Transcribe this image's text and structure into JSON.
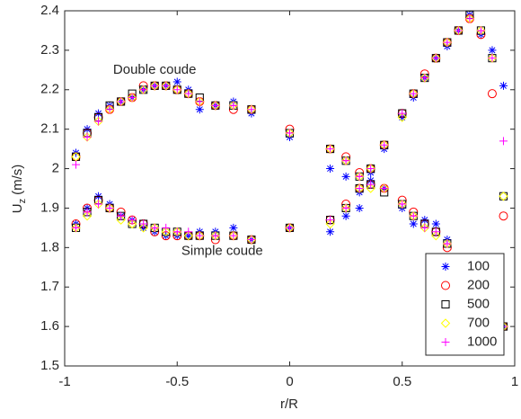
{
  "chart_data": {
    "type": "scatter",
    "xlabel": "r/R",
    "ylabel": "U",
    "ylabel_subscript": "z",
    "ylabel_units": "(m/s)",
    "annotations": [
      {
        "text": "Double coude",
        "x": -0.6,
        "y": 2.25
      },
      {
        "text": "Simple coude",
        "x": -0.3,
        "y": 1.79
      }
    ],
    "xlim": [
      -1,
      1
    ],
    "ylim": [
      1.5,
      2.4
    ],
    "xticks": [
      -1,
      -0.5,
      0,
      0.5,
      1
    ],
    "yticks": [
      1.5,
      1.6,
      1.7,
      1.8,
      1.9,
      2,
      2.1,
      2.2,
      2.3,
      2.4
    ],
    "grid": false,
    "legend": "lower right",
    "x": [
      -0.95,
      -0.9,
      -0.85,
      -0.8,
      -0.75,
      -0.7,
      -0.65,
      -0.6,
      -0.55,
      -0.5,
      -0.45,
      -0.4,
      -0.33,
      -0.25,
      -0.17,
      0,
      0.18,
      0.25,
      0.31,
      0.36,
      0.42,
      0.5,
      0.55,
      0.6,
      0.65,
      0.7,
      0.75,
      0.8,
      0.85,
      0.9,
      0.95,
      -0.95,
      -0.9,
      -0.85,
      -0.8,
      -0.75,
      -0.7,
      -0.65,
      -0.6,
      -0.55,
      -0.5,
      -0.45,
      -0.4,
      -0.33,
      -0.25,
      -0.17,
      0,
      0.18,
      0.25,
      0.31,
      0.36,
      0.42,
      0.5,
      0.55,
      0.6,
      0.65,
      0.7,
      0.75,
      0.8,
      0.85,
      0.9,
      0.95
    ],
    "series": [
      {
        "name": "100",
        "color": "#0000ff",
        "marker": "star",
        "values": [
          2.04,
          2.1,
          2.14,
          2.16,
          2.17,
          2.18,
          2.2,
          2.21,
          2.21,
          2.22,
          2.2,
          2.15,
          2.16,
          2.17,
          2.14,
          2.08,
          2.0,
          1.98,
          1.9,
          1.97,
          1.95,
          1.9,
          1.86,
          1.87,
          1.86,
          1.82,
          1.76,
          1.73,
          1.7,
          1.66,
          1.6,
          1.86,
          1.9,
          1.93,
          1.91,
          1.88,
          1.87,
          1.85,
          1.84,
          1.83,
          1.83,
          1.83,
          1.84,
          1.84,
          1.85,
          1.82,
          1.85,
          1.84,
          1.88,
          1.94,
          1.99,
          2.05,
          2.13,
          2.18,
          2.23,
          2.28,
          2.31,
          2.35,
          2.39,
          2.34,
          2.3,
          2.21
        ]
      },
      {
        "name": "200",
        "color": "#ff0000",
        "marker": "circle",
        "values": [
          2.03,
          2.09,
          2.13,
          2.15,
          2.17,
          2.18,
          2.21,
          2.21,
          2.21,
          2.2,
          2.19,
          2.17,
          2.16,
          2.15,
          2.15,
          2.1,
          2.05,
          2.03,
          1.99,
          1.96,
          1.95,
          1.92,
          1.89,
          1.86,
          1.84,
          1.8,
          1.76,
          1.72,
          1.69,
          1.64,
          1.6,
          1.86,
          1.9,
          1.92,
          1.9,
          1.89,
          1.87,
          1.86,
          1.84,
          1.83,
          1.83,
          1.83,
          1.83,
          1.82,
          1.83,
          1.82,
          1.85,
          1.87,
          1.91,
          1.95,
          2.0,
          2.06,
          2.14,
          2.19,
          2.24,
          2.28,
          2.32,
          2.35,
          2.38,
          2.34,
          2.19,
          1.88
        ]
      },
      {
        "name": "500",
        "color": "#000000",
        "marker": "square",
        "values": [
          2.03,
          2.09,
          2.13,
          2.16,
          2.17,
          2.19,
          2.2,
          2.21,
          2.21,
          2.2,
          2.19,
          2.18,
          2.16,
          2.16,
          2.15,
          2.09,
          2.05,
          2.02,
          1.98,
          1.96,
          1.94,
          1.91,
          1.88,
          1.86,
          1.84,
          1.81,
          1.77,
          1.73,
          1.7,
          1.65,
          1.6,
          1.85,
          1.89,
          1.92,
          1.9,
          1.88,
          1.86,
          1.86,
          1.85,
          1.84,
          1.84,
          1.83,
          1.83,
          1.83,
          1.83,
          1.82,
          1.85,
          1.87,
          1.9,
          1.95,
          2.0,
          2.06,
          2.14,
          2.19,
          2.23,
          2.28,
          2.32,
          2.35,
          2.39,
          2.35,
          2.28,
          1.93
        ]
      },
      {
        "name": "700",
        "color": "#ffff00",
        "marker": "diamond",
        "values": [
          2.03,
          2.08,
          2.12,
          2.15,
          2.17,
          2.18,
          2.2,
          2.21,
          2.21,
          2.2,
          2.19,
          2.17,
          2.16,
          2.16,
          2.15,
          2.09,
          2.05,
          2.02,
          1.98,
          1.95,
          1.95,
          1.91,
          1.88,
          1.85,
          1.83,
          1.81,
          1.77,
          1.73,
          1.7,
          1.65,
          1.6,
          1.85,
          1.88,
          1.91,
          1.9,
          1.87,
          1.86,
          1.85,
          1.85,
          1.84,
          1.84,
          1.83,
          1.83,
          1.83,
          1.83,
          1.82,
          1.85,
          1.86,
          1.9,
          1.95,
          2.0,
          2.06,
          2.13,
          2.19,
          2.23,
          2.28,
          2.32,
          2.35,
          2.38,
          2.35,
          2.28,
          1.93
        ]
      },
      {
        "name": "1000",
        "color": "#ff00ff",
        "marker": "plus",
        "values": [
          2.01,
          2.08,
          2.12,
          2.15,
          2.17,
          2.18,
          2.2,
          2.21,
          2.21,
          2.2,
          2.19,
          2.17,
          2.16,
          2.16,
          2.15,
          2.09,
          2.05,
          2.02,
          1.98,
          1.96,
          1.95,
          1.91,
          1.88,
          1.85,
          1.84,
          1.81,
          1.77,
          1.73,
          1.7,
          1.65,
          1.6,
          1.85,
          1.89,
          1.91,
          1.9,
          1.88,
          1.87,
          1.86,
          1.85,
          1.85,
          1.84,
          1.84,
          1.83,
          1.83,
          1.83,
          1.82,
          1.85,
          1.87,
          1.9,
          1.95,
          2.0,
          2.06,
          2.14,
          2.19,
          2.23,
          2.28,
          2.32,
          2.35,
          2.38,
          2.35,
          2.28,
          2.07
        ]
      }
    ]
  }
}
